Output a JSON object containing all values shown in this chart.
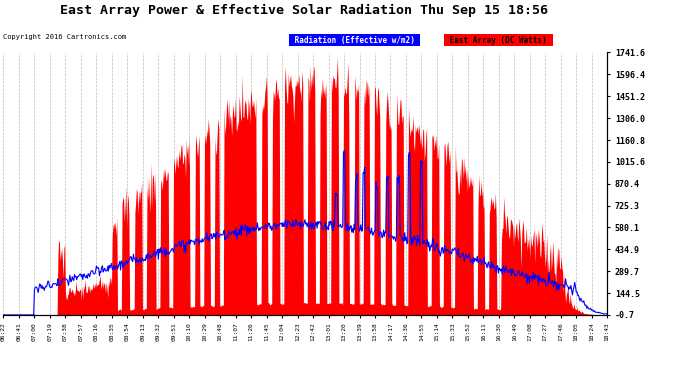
{
  "title": "East Array Power & Effective Solar Radiation Thu Sep 15 18:56",
  "copyright": "Copyright 2016 Cartronics.com",
  "legend_radiation": "Radiation (Effective w/m2)",
  "legend_east": "East Array (DC Watts)",
  "y_ticks": [
    -0.7,
    144.5,
    289.7,
    434.9,
    580.1,
    725.3,
    870.4,
    1015.6,
    1160.8,
    1306.0,
    1451.2,
    1596.4,
    1741.6
  ],
  "y_min": -0.7,
  "y_max": 1741.6,
  "plot_bg_color": "#ffffff",
  "grid_color": "#aaaaaa",
  "red_color": "#ff0000",
  "blue_color": "#0000ff",
  "title_color": "#000000",
  "fig_bg": "#ffffff",
  "x_labels": [
    "06:22",
    "06:41",
    "07:00",
    "07:19",
    "07:38",
    "07:57",
    "08:16",
    "08:35",
    "08:54",
    "09:13",
    "09:32",
    "09:51",
    "10:10",
    "10:29",
    "10:48",
    "11:07",
    "11:26",
    "11:45",
    "12:04",
    "12:23",
    "12:42",
    "13:01",
    "13:20",
    "13:39",
    "13:58",
    "14:17",
    "14:36",
    "14:55",
    "15:14",
    "15:33",
    "15:52",
    "16:11",
    "16:30",
    "16:49",
    "17:08",
    "17:27",
    "17:46",
    "18:05",
    "18:24",
    "18:43"
  ]
}
